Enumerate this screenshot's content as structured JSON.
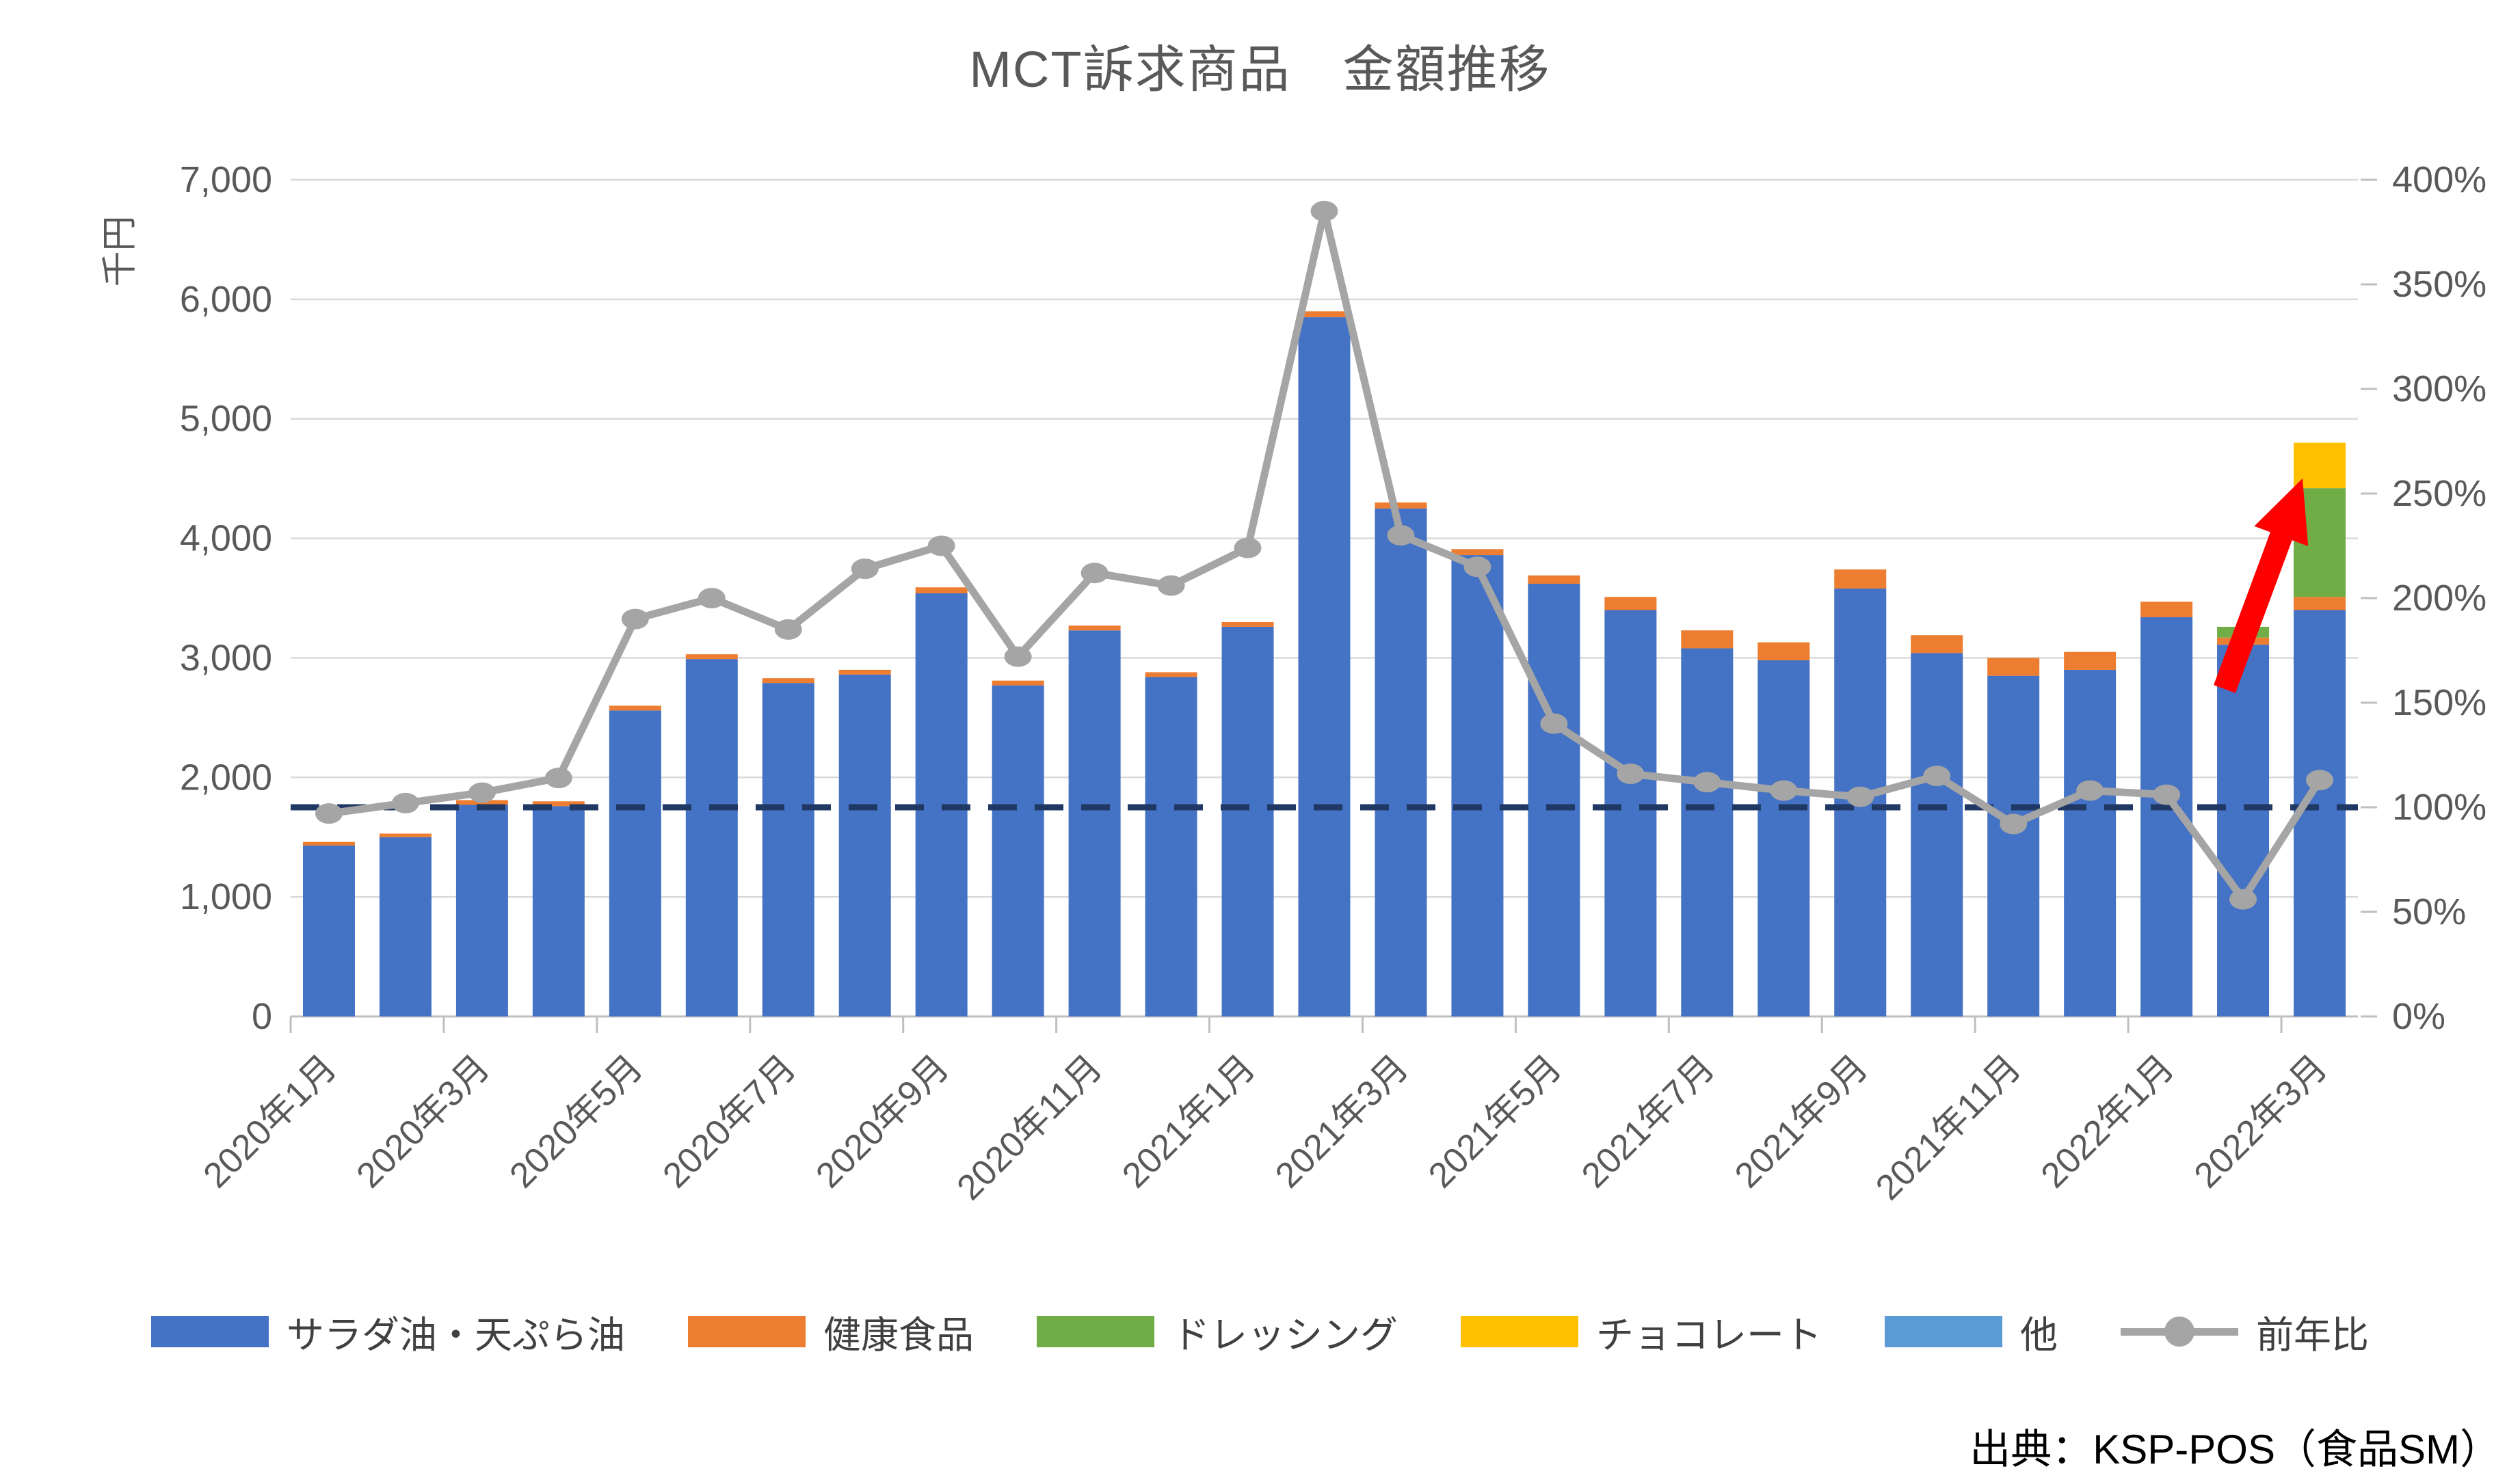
{
  "title": "MCT訴求商品　金額推移",
  "y_axis_title": "千円",
  "source": "出典：KSP-POS（食品SM）",
  "colors": {
    "salad_oil": "#4472C4",
    "health_food": "#ED7D31",
    "dressing": "#70AD47",
    "chocolate": "#FFC000",
    "other": "#5B9BD5",
    "yoy_line": "#A5A5A5",
    "reference_line": "#1F3864",
    "arrow": "#FF0000",
    "gridline": "#D9D9D9",
    "axis_text": "#595959"
  },
  "chart_data": {
    "type": "bar",
    "subtype": "stacked-bar-with-line-combo",
    "title": "MCT訴求商品　金額推移",
    "xlabel": "",
    "ylabel": "千円",
    "grid": true,
    "legend_position": "bottom",
    "x_label_every": 2,
    "categories": [
      "2020年1月",
      "2020年2月",
      "2020年3月",
      "2020年4月",
      "2020年5月",
      "2020年6月",
      "2020年7月",
      "2020年8月",
      "2020年9月",
      "2020年10月",
      "2020年11月",
      "2020年12月",
      "2021年1月",
      "2021年2月",
      "2021年3月",
      "2021年4月",
      "2021年5月",
      "2021年6月",
      "2021年7月",
      "2021年8月",
      "2021年9月",
      "2021年10月",
      "2021年11月",
      "2021年12月",
      "2022年1月",
      "2022年2月",
      "2022年3月"
    ],
    "left_axis": {
      "min": 0,
      "max": 7000,
      "step": 1000,
      "labels": [
        "0",
        "1,000",
        "2,000",
        "3,000",
        "4,000",
        "5,000",
        "6,000",
        "7,000"
      ]
    },
    "right_axis": {
      "min": 0,
      "max": 400,
      "step": 50,
      "labels": [
        "0%",
        "50%",
        "100%",
        "150%",
        "200%",
        "250%",
        "300%",
        "350%",
        "400%"
      ]
    },
    "series": [
      {
        "name": "サラダ油・天ぷら油",
        "type": "bar",
        "color": "#4472C4",
        "values": [
          1430,
          1500,
          1770,
          1760,
          2560,
          2990,
          2790,
          2860,
          3540,
          2770,
          3230,
          2840,
          3260,
          5850,
          4250,
          3860,
          3620,
          3400,
          3080,
          2980,
          3580,
          3040,
          2850,
          2900,
          3340,
          3110,
          3400
        ]
      },
      {
        "name": "健康食品",
        "type": "bar",
        "color": "#ED7D31",
        "values": [
          30,
          30,
          40,
          40,
          40,
          40,
          40,
          40,
          50,
          40,
          40,
          40,
          40,
          50,
          50,
          50,
          70,
          110,
          150,
          150,
          160,
          150,
          150,
          150,
          130,
          60,
          110
        ]
      },
      {
        "name": "ドレッシング",
        "type": "bar",
        "color": "#70AD47",
        "values": [
          0,
          0,
          0,
          0,
          0,
          0,
          0,
          0,
          0,
          0,
          0,
          0,
          0,
          0,
          0,
          0,
          0,
          0,
          0,
          0,
          0,
          0,
          0,
          0,
          0,
          90,
          910
        ]
      },
      {
        "name": "チョコレート",
        "type": "bar",
        "color": "#FFC000",
        "values": [
          0,
          0,
          0,
          0,
          0,
          0,
          0,
          0,
          0,
          0,
          0,
          0,
          0,
          0,
          0,
          0,
          0,
          0,
          0,
          0,
          0,
          0,
          0,
          0,
          0,
          0,
          380
        ]
      },
      {
        "name": "他",
        "type": "bar",
        "color": "#5B9BD5",
        "values": [
          0,
          0,
          0,
          0,
          0,
          0,
          0,
          0,
          0,
          0,
          0,
          0,
          0,
          0,
          0,
          0,
          0,
          0,
          0,
          0,
          0,
          0,
          0,
          0,
          0,
          0,
          0
        ]
      },
      {
        "name": "前年比",
        "type": "line",
        "axis": "right",
        "color": "#A5A5A5",
        "unit": "%",
        "values": [
          97,
          102,
          107,
          114,
          190,
          200,
          185,
          214,
          225,
          172,
          212,
          206,
          224,
          385,
          230,
          215,
          140,
          116,
          112,
          108,
          105,
          115,
          92,
          108,
          106,
          56,
          113
        ]
      }
    ],
    "reference_line": {
      "axis": "right",
      "value": 100,
      "style": "dashed",
      "color": "#1F3864"
    },
    "annotation": {
      "type": "arrow",
      "color": "#FF0000",
      "from_category": "2022年2月",
      "to_category": "2022年3月",
      "direction": "up-right"
    }
  }
}
